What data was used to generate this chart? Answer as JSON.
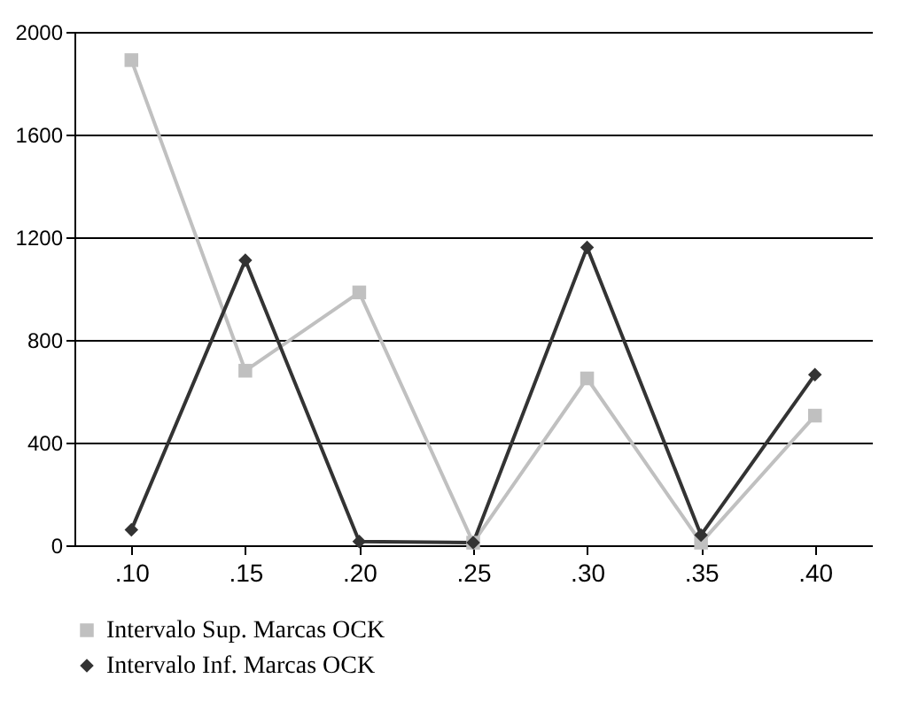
{
  "chart_data": {
    "type": "line",
    "categories": [
      ".10",
      ".15",
      ".20",
      ".25",
      ".30",
      ".35",
      ".40"
    ],
    "series": [
      {
        "name": "Intervalo Sup. Marcas OCK",
        "color": "#c0c0c0",
        "marker": "square",
        "values": [
          1890,
          680,
          985,
          10,
          650,
          10,
          505
        ]
      },
      {
        "name": "Intervalo Inf. Marcas OCK",
        "color": "#333333",
        "marker": "diamond",
        "values": [
          60,
          1110,
          15,
          10,
          1160,
          40,
          665
        ]
      }
    ],
    "ylim": [
      0,
      2000
    ],
    "yticks": [
      0,
      400,
      800,
      1200,
      1600,
      2000
    ],
    "grid": "y",
    "legend": "bottom",
    "line_style": "solid"
  }
}
